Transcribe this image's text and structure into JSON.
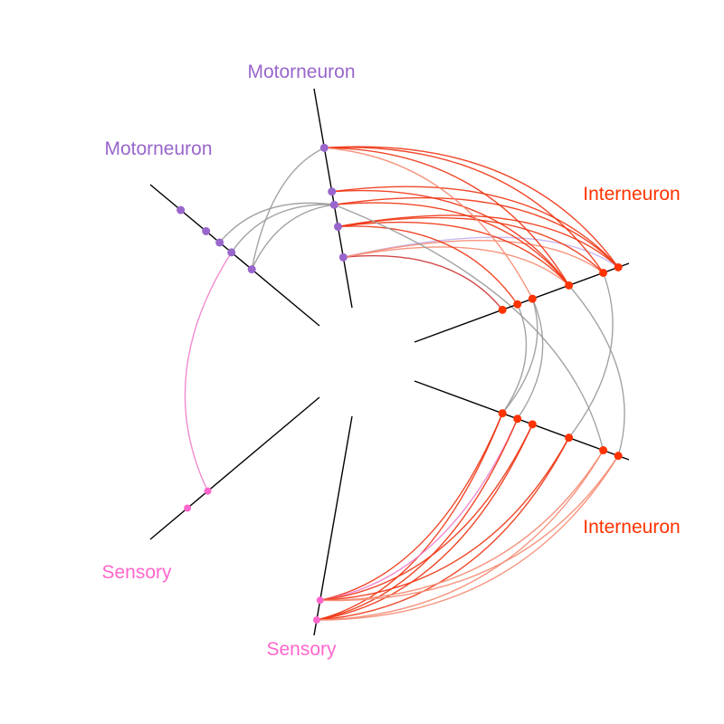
{
  "diagram": {
    "type": "hive-plot",
    "colors": {
      "motorneuron": "#9966cc",
      "interneuron": "#ff3300",
      "sensory": "#ff66cc",
      "axis": "#000000",
      "edge_grey": "#999999",
      "edge_red": "#ee3311",
      "edge_salmon": "#f58a70",
      "edge_lavender": "#c4b0ee",
      "edge_pink": "#f080cc",
      "edge_darkred": "#cc3333"
    },
    "axes": [
      {
        "id": "motor_a",
        "label": "Motorneuron",
        "class": "motorneuron"
      },
      {
        "id": "motor_b",
        "label": "Motorneuron",
        "class": "motorneuron"
      },
      {
        "id": "inter_a",
        "label": "Interneuron",
        "class": "interneuron"
      },
      {
        "id": "inter_b",
        "label": "Interneuron",
        "class": "interneuron"
      },
      {
        "id": "sensory_a",
        "label": "Sensory",
        "class": "sensory"
      },
      {
        "id": "sensory_b",
        "label": "Sensory",
        "class": "sensory"
      }
    ],
    "nodes": {
      "motor_a": [
        0.23,
        0.37,
        0.47,
        0.53,
        0.73
      ],
      "motor_b": [
        0.4,
        0.52,
        0.59,
        0.67,
        0.82
      ],
      "inter_a": [
        0.41,
        0.48,
        0.55,
        0.72,
        0.88,
        0.95
      ],
      "inter_b": [
        0.41,
        0.48,
        0.55,
        0.72,
        0.88,
        0.95
      ],
      "sensory_a": [
        0.66,
        0.78
      ],
      "sensory_b": [
        0.84,
        0.93
      ]
    },
    "edges": [
      {
        "from": [
          "motor_a",
          0
        ],
        "to": [
          "inter_a",
          5
        ],
        "color": "edge_lavender"
      },
      {
        "from": [
          "motor_a",
          0
        ],
        "to": [
          "inter_a",
          4
        ],
        "color": "edge_salmon"
      },
      {
        "from": [
          "motor_a",
          0
        ],
        "to": [
          "inter_a",
          0
        ],
        "color": "edge_darkred"
      },
      {
        "from": [
          "motor_a",
          0
        ],
        "to": [
          "inter_a",
          3
        ],
        "color": "edge_salmon"
      },
      {
        "from": [
          "motor_a",
          1
        ],
        "to": [
          "inter_a",
          5
        ],
        "color": "edge_red"
      },
      {
        "from": [
          "motor_a",
          1
        ],
        "to": [
          "inter_a",
          4
        ],
        "color": "edge_red"
      },
      {
        "from": [
          "motor_a",
          1
        ],
        "to": [
          "inter_a",
          3
        ],
        "color": "edge_red"
      },
      {
        "from": [
          "motor_a",
          1
        ],
        "to": [
          "inter_a",
          1
        ],
        "color": "edge_red"
      },
      {
        "from": [
          "motor_a",
          2
        ],
        "to": [
          "inter_a",
          5
        ],
        "color": "edge_red"
      },
      {
        "from": [
          "motor_a",
          2
        ],
        "to": [
          "inter_a",
          3
        ],
        "color": "edge_red"
      },
      {
        "from": [
          "motor_a",
          2
        ],
        "to": [
          "inter_b",
          4
        ],
        "color": "edge_grey"
      },
      {
        "from": [
          "motor_a",
          3
        ],
        "to": [
          "inter_a",
          5
        ],
        "color": "edge_red"
      },
      {
        "from": [
          "motor_a",
          3
        ],
        "to": [
          "inter_a",
          3
        ],
        "color": "edge_red"
      },
      {
        "from": [
          "motor_a",
          4
        ],
        "to": [
          "inter_a",
          5
        ],
        "color": "edge_red"
      },
      {
        "from": [
          "motor_a",
          4
        ],
        "to": [
          "inter_a",
          4
        ],
        "color": "edge_red"
      },
      {
        "from": [
          "motor_a",
          4
        ],
        "to": [
          "inter_a",
          3
        ],
        "color": "edge_red"
      },
      {
        "from": [
          "motor_a",
          4
        ],
        "to": [
          "inter_a",
          2
        ],
        "color": "edge_salmon"
      },
      {
        "from": [
          "motor_b",
          0
        ],
        "to": [
          "motor_a",
          2
        ],
        "color": "edge_grey"
      },
      {
        "from": [
          "motor_b",
          0
        ],
        "to": [
          "motor_a",
          4
        ],
        "color": "edge_grey"
      },
      {
        "from": [
          "motor_b",
          1
        ],
        "to": [
          "motor_a",
          2
        ],
        "color": "edge_grey"
      },
      {
        "from": [
          "motor_b",
          2
        ],
        "to": [
          "motor_a",
          2
        ],
        "color": "edge_grey"
      },
      {
        "from": [
          "motor_b",
          1
        ],
        "to": [
          "sensory_a",
          0
        ],
        "color": "edge_pink"
      },
      {
        "from": [
          "inter_a",
          2
        ],
        "to": [
          "inter_b",
          0
        ],
        "color": "edge_grey"
      },
      {
        "from": [
          "inter_a",
          2
        ],
        "to": [
          "inter_b",
          1
        ],
        "color": "edge_grey"
      },
      {
        "from": [
          "inter_a",
          1
        ],
        "to": [
          "inter_b",
          0
        ],
        "color": "edge_grey"
      },
      {
        "from": [
          "inter_a",
          4
        ],
        "to": [
          "inter_b",
          3
        ],
        "color": "edge_grey"
      },
      {
        "from": [
          "inter_a",
          3
        ],
        "to": [
          "inter_b",
          5
        ],
        "color": "edge_grey"
      },
      {
        "from": [
          "inter_b",
          0
        ],
        "to": [
          "sensory_b",
          0
        ],
        "color": "edge_red"
      },
      {
        "from": [
          "inter_b",
          0
        ],
        "to": [
          "sensory_b",
          1
        ],
        "color": "edge_red"
      },
      {
        "from": [
          "inter_b",
          1
        ],
        "to": [
          "sensory_b",
          0
        ],
        "color": "edge_pink"
      },
      {
        "from": [
          "inter_b",
          1
        ],
        "to": [
          "sensory_b",
          1
        ],
        "color": "edge_red"
      },
      {
        "from": [
          "inter_b",
          2
        ],
        "to": [
          "sensory_b",
          0
        ],
        "color": "edge_red"
      },
      {
        "from": [
          "inter_b",
          2
        ],
        "to": [
          "sensory_b",
          1
        ],
        "color": "edge_red"
      },
      {
        "from": [
          "inter_b",
          3
        ],
        "to": [
          "sensory_b",
          0
        ],
        "color": "edge_red"
      },
      {
        "from": [
          "inter_b",
          3
        ],
        "to": [
          "sensory_b",
          1
        ],
        "color": "edge_red"
      },
      {
        "from": [
          "inter_b",
          4
        ],
        "to": [
          "sensory_b",
          0
        ],
        "color": "edge_salmon"
      },
      {
        "from": [
          "inter_b",
          4
        ],
        "to": [
          "sensory_b",
          1
        ],
        "color": "edge_salmon"
      },
      {
        "from": [
          "inter_b",
          5
        ],
        "to": [
          "sensory_b",
          0
        ],
        "color": "edge_salmon"
      },
      {
        "from": [
          "inter_b",
          5
        ],
        "to": [
          "sensory_b",
          1
        ],
        "color": "edge_salmon"
      }
    ]
  }
}
